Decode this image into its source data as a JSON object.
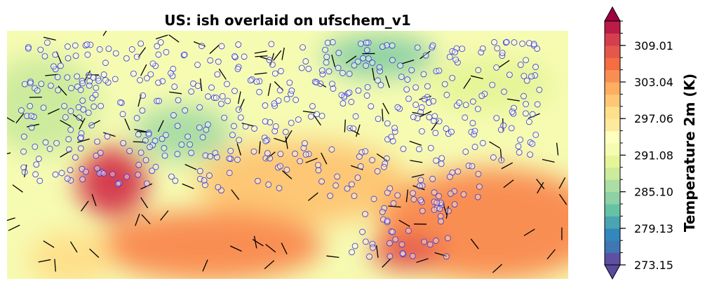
{
  "chart_data": {
    "type": "map",
    "title": "US: ish overlaid on ufschem_v1",
    "colorbar": {
      "label": "Temperature 2m (K)",
      "lim": [
        273.15,
        313.0
      ],
      "extend": "both",
      "ticks": [
        273.15,
        279.13,
        {
          "value": 285.1,
          "label": "285.10"
        },
        291.08,
        297.06,
        303.04,
        309.01
      ],
      "colors": [
        "#5e4fa2",
        "#3f76b4",
        "#3288bd",
        "#4aa4b2",
        "#66c2a5",
        "#8dd1a4",
        "#abdda4",
        "#cdeb9d",
        "#e6f598",
        "#f6fbb2",
        "#ffffbf",
        "#fee99c",
        "#fee08b",
        "#fdc775",
        "#fdae61",
        "#f98e52",
        "#f46d43",
        "#e4574b",
        "#d53e4f",
        "#b91c46"
      ],
      "extend_colors": [
        "#5a4a9e",
        "#9e0142"
      ]
    }
  }
}
